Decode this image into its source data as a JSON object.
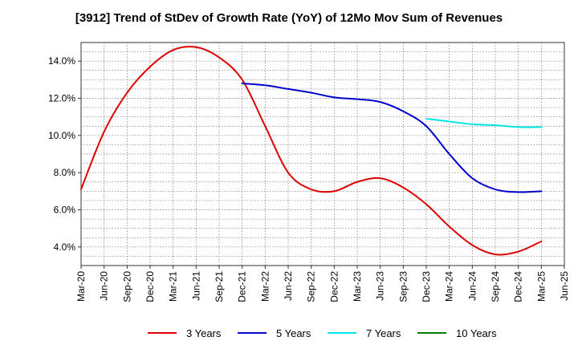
{
  "chart_data": {
    "type": "line",
    "title": "[3912]  Trend of StDev of Growth Rate (YoY) of 12Mo Mov Sum of Revenues",
    "xlabel": "",
    "ylabel": "",
    "categories": [
      "Mar-20",
      "Jun-20",
      "Sep-20",
      "Dec-20",
      "Mar-21",
      "Jun-21",
      "Sep-21",
      "Dec-21",
      "Mar-22",
      "Jun-22",
      "Sep-22",
      "Dec-22",
      "Mar-23",
      "Jun-23",
      "Sep-23",
      "Dec-23",
      "Mar-24",
      "Jun-24",
      "Sep-24",
      "Dec-24",
      "Mar-25",
      "Jun-25"
    ],
    "ylim": [
      3.0,
      15.0
    ],
    "yticks": [
      4.0,
      6.0,
      8.0,
      10.0,
      12.0,
      14.0
    ],
    "ytick_labels": [
      "4.0%",
      "6.0%",
      "8.0%",
      "10.0%",
      "12.0%",
      "14.0%"
    ],
    "grid": true,
    "legend_position": "bottom",
    "series": [
      {
        "name": "3 Years",
        "color": "#e00000",
        "values": [
          7.1,
          10.2,
          12.3,
          13.7,
          14.6,
          14.75,
          14.2,
          13.0,
          10.5,
          8.0,
          7.1,
          7.0,
          7.5,
          7.7,
          7.2,
          6.3,
          5.1,
          4.1,
          3.6,
          3.75,
          4.3,
          null
        ]
      },
      {
        "name": "5 Years",
        "color": "#0000cc",
        "values": [
          null,
          null,
          null,
          null,
          null,
          null,
          null,
          12.8,
          12.7,
          12.5,
          12.3,
          12.05,
          11.95,
          11.8,
          11.3,
          10.5,
          9.0,
          7.7,
          7.1,
          6.95,
          7.0,
          null
        ]
      },
      {
        "name": "7 Years",
        "color": "#00e5e5",
        "values": [
          null,
          null,
          null,
          null,
          null,
          null,
          null,
          null,
          null,
          null,
          null,
          null,
          null,
          null,
          null,
          10.9,
          10.75,
          10.6,
          10.55,
          10.45,
          10.45,
          null
        ]
      },
      {
        "name": "10 Years",
        "color": "#008000",
        "values": [
          null,
          null,
          null,
          null,
          null,
          null,
          null,
          null,
          null,
          null,
          null,
          null,
          null,
          null,
          null,
          null,
          null,
          null,
          null,
          null,
          null,
          null
        ]
      }
    ]
  }
}
